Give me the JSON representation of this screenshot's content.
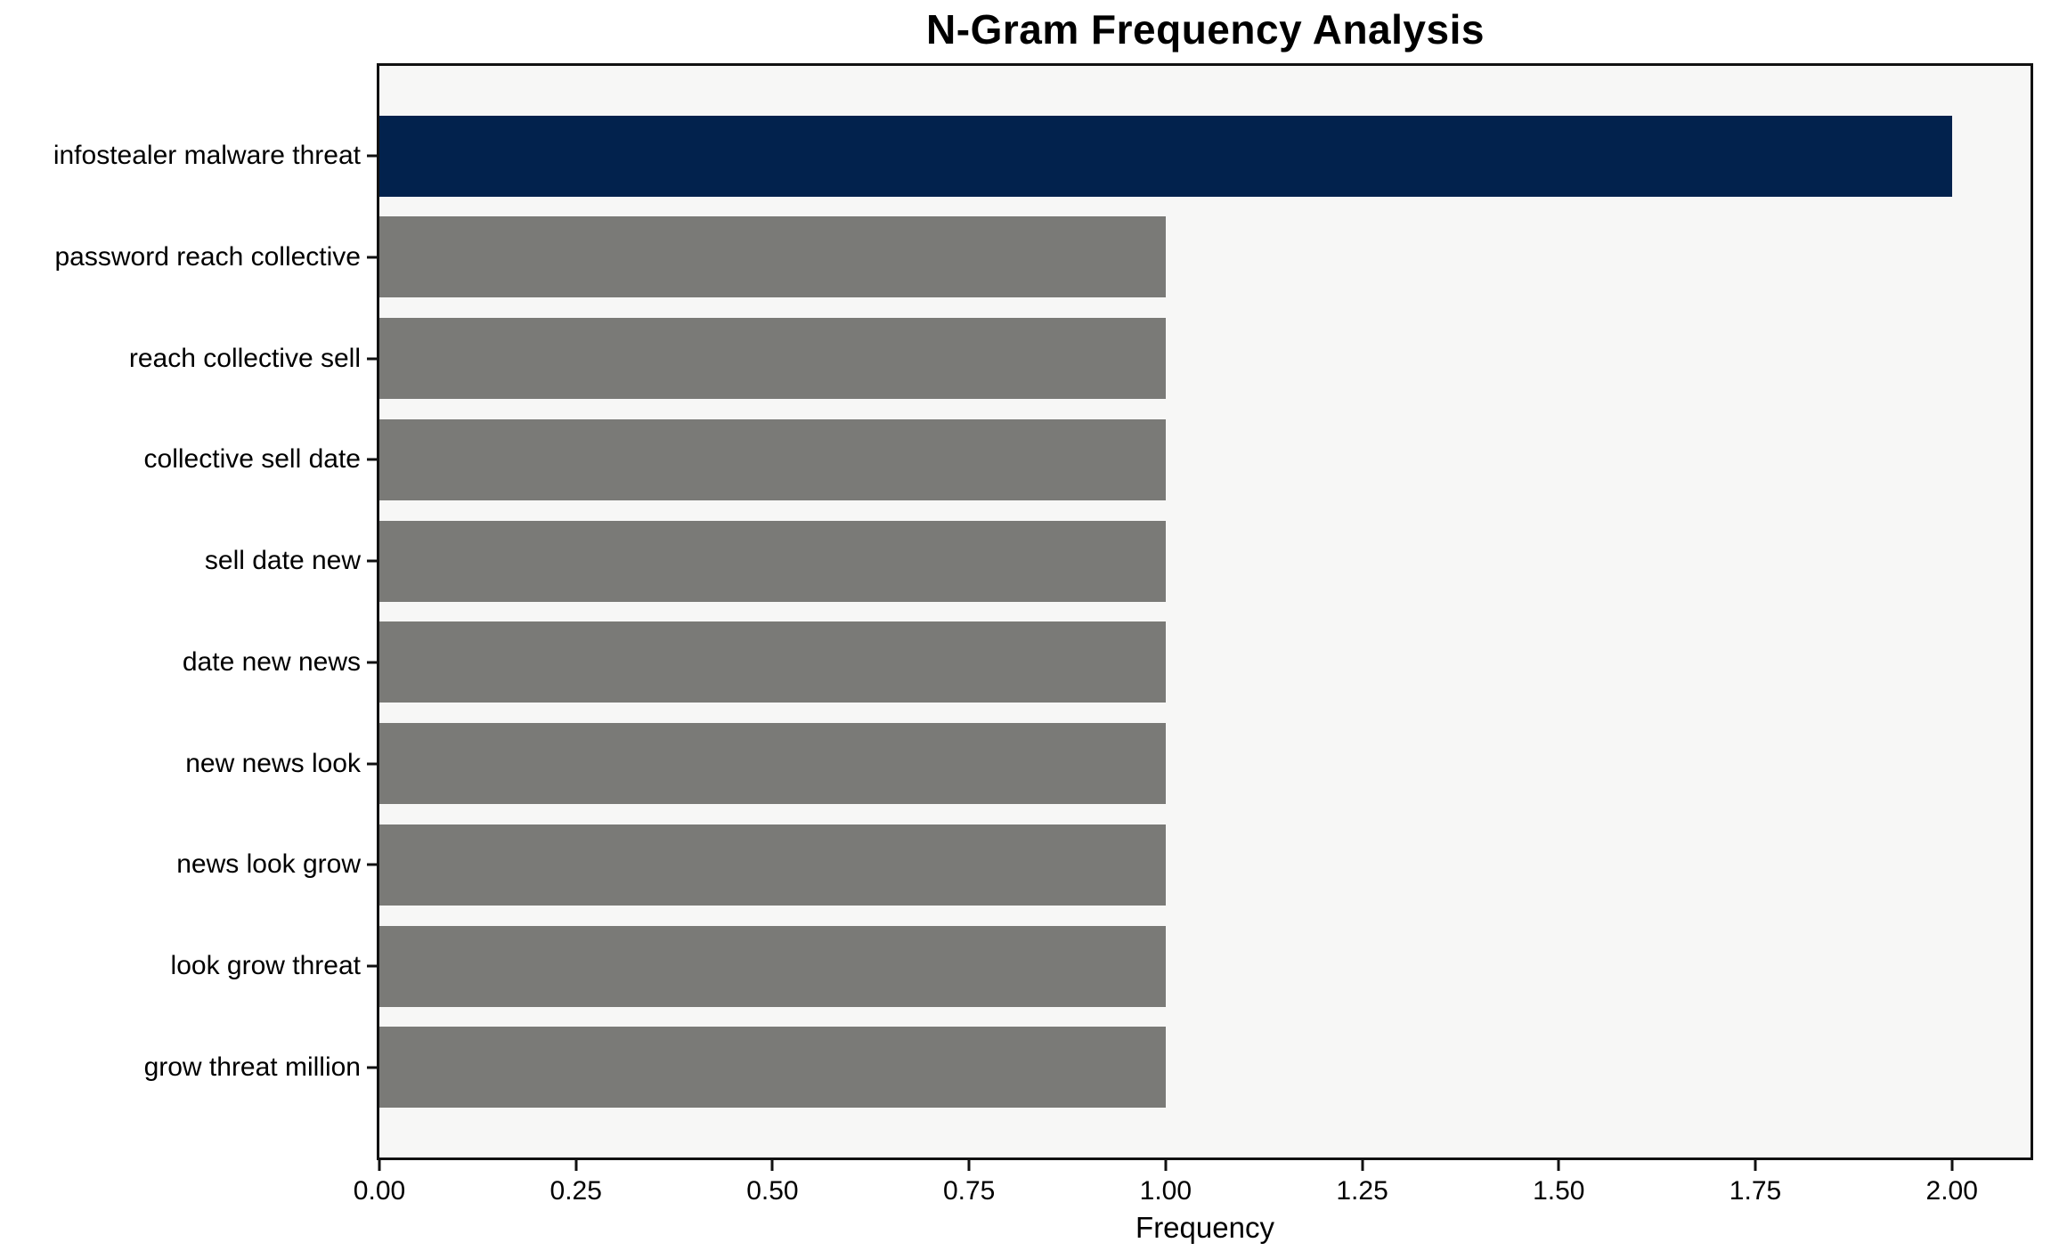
{
  "chart_data": {
    "type": "bar",
    "orientation": "horizontal",
    "title": "N-Gram Frequency Analysis",
    "xlabel": "Frequency",
    "ylabel": "",
    "categories": [
      "infostealer malware threat",
      "password reach collective",
      "reach collective sell",
      "collective sell date",
      "sell date new",
      "date new news",
      "new news look",
      "news look grow",
      "look grow threat",
      "grow threat million"
    ],
    "values": [
      2,
      1,
      1,
      1,
      1,
      1,
      1,
      1,
      1,
      1
    ],
    "bar_colors": [
      "#02224d",
      "#7a7a77",
      "#7a7a77",
      "#7a7a77",
      "#7a7a77",
      "#7a7a77",
      "#7a7a77",
      "#7a7a77",
      "#7a7a77",
      "#7a7a77"
    ],
    "xticks": [
      {
        "value": 0.0,
        "label": "0.00"
      },
      {
        "value": 0.25,
        "label": "0.25"
      },
      {
        "value": 0.5,
        "label": "0.50"
      },
      {
        "value": 0.75,
        "label": "0.75"
      },
      {
        "value": 1.0,
        "label": "1.00"
      },
      {
        "value": 1.25,
        "label": "1.25"
      },
      {
        "value": 1.5,
        "label": "1.50"
      },
      {
        "value": 1.75,
        "label": "1.75"
      },
      {
        "value": 2.0,
        "label": "2.00"
      }
    ],
    "xlim": [
      0,
      2.1
    ],
    "grid": false,
    "legend": null,
    "colors": {
      "highlight_bar": "#02224d",
      "default_bar": "#7a7a77",
      "plot_background": "#f7f7f6",
      "figure_background": "#ffffff",
      "spine": "#111111",
      "text": "#000000"
    }
  }
}
